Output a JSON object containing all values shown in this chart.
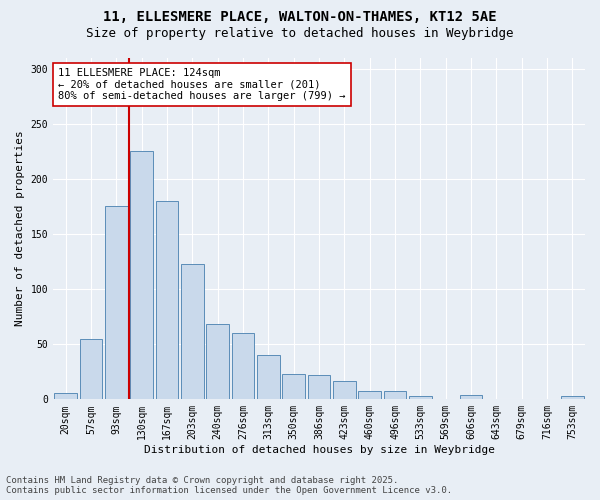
{
  "title": "11, ELLESMERE PLACE, WALTON-ON-THAMES, KT12 5AE",
  "subtitle": "Size of property relative to detached houses in Weybridge",
  "xlabel": "Distribution of detached houses by size in Weybridge",
  "ylabel": "Number of detached properties",
  "categories": [
    "20sqm",
    "57sqm",
    "93sqm",
    "130sqm",
    "167sqm",
    "203sqm",
    "240sqm",
    "276sqm",
    "313sqm",
    "350sqm",
    "386sqm",
    "423sqm",
    "460sqm",
    "496sqm",
    "533sqm",
    "569sqm",
    "606sqm",
    "643sqm",
    "679sqm",
    "716sqm",
    "753sqm"
  ],
  "values": [
    6,
    55,
    175,
    225,
    180,
    123,
    68,
    60,
    40,
    23,
    22,
    17,
    8,
    8,
    3,
    0,
    4,
    0,
    0,
    0,
    3
  ],
  "bar_color": "#c9d9eb",
  "bar_edge_color": "#5b8db8",
  "red_line_index": 3,
  "red_line_color": "#cc0000",
  "annotation_box_color": "#ffffff",
  "annotation_border_color": "#cc0000",
  "annotation_text_line1": "11 ELLESMERE PLACE: 124sqm",
  "annotation_text_line2": "← 20% of detached houses are smaller (201)",
  "annotation_text_line3": "80% of semi-detached houses are larger (799) →",
  "ylim": [
    0,
    310
  ],
  "yticks": [
    0,
    50,
    100,
    150,
    200,
    250,
    300
  ],
  "background_color": "#e8eef5",
  "plot_bg_color": "#e8eef5",
  "footer_line1": "Contains HM Land Registry data © Crown copyright and database right 2025.",
  "footer_line2": "Contains public sector information licensed under the Open Government Licence v3.0.",
  "title_fontsize": 10,
  "subtitle_fontsize": 9,
  "axis_label_fontsize": 8,
  "tick_fontsize": 7,
  "annotation_fontsize": 7.5,
  "footer_fontsize": 6.5
}
